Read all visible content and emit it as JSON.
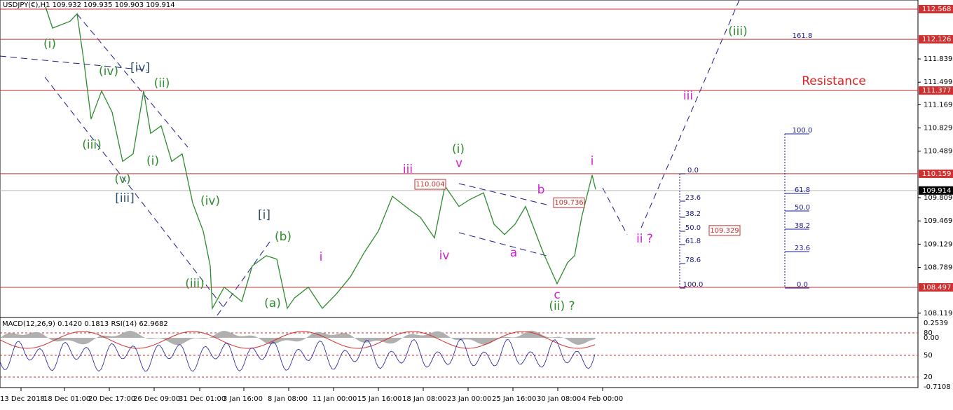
{
  "header": "USDJPY(€),H1  109.932 109.935 109.903 109.914",
  "price": {
    "color": "#2e8b2e",
    "values": [
      112.6,
      112.29,
      112.39,
      112.5,
      111.78,
      110.96,
      111.37,
      111.06,
      110.34,
      110.45,
      111.37,
      110.75,
      110.86,
      110.34,
      110.45,
      109.73,
      109.32,
      108.81,
      108.19,
      108.5,
      108.29,
      108.81,
      108.96,
      108.91,
      108.19,
      108.34,
      108.5,
      108.19,
      108.4,
      108.65,
      109.01,
      109.32,
      109.83,
      109.63,
      109.52,
      109.22,
      109.98,
      109.68,
      109.78,
      109.88,
      109.42,
      109.27,
      109.42,
      109.68,
      109.01,
      108.55,
      108.86,
      108.96,
      109.52,
      110.14,
      109.93
    ]
  },
  "price_axis": {
    "ticks": [
      111.839,
      111.499,
      111.169,
      110.829,
      110.489,
      109.809,
      109.469,
      109.129,
      108.789,
      108.119
    ]
  },
  "levels": [
    112.568,
    112.126,
    111.377,
    110.159,
    108.497
  ],
  "last_price": 109.914,
  "boxes": [
    110.004,
    109.736,
    109.329
  ],
  "waves": [
    {
      "text": "(i)",
      "color": "#2e8b2e"
    },
    {
      "text": "(iv)",
      "color": "#2e8b2e"
    },
    {
      "text": "[iv]",
      "color": "#2f4f6f"
    },
    {
      "text": "(ii)",
      "color": "#2e8b2e"
    },
    {
      "text": "(iii)",
      "color": "#2e8b2e"
    },
    {
      "text": "(i)",
      "color": "#2e8b2e"
    },
    {
      "text": "(v)",
      "color": "#2e8b2e"
    },
    {
      "text": "[iii]",
      "color": "#2f4f6f"
    },
    {
      "text": "(iv)",
      "color": "#2e8b2e"
    },
    {
      "text": "[i]",
      "color": "#2f4f6f"
    },
    {
      "text": "(b)",
      "color": "#2e8b2e"
    },
    {
      "text": "(iii)",
      "color": "#2e8b2e"
    },
    {
      "text": "(a)",
      "color": "#2e8b2e"
    },
    {
      "text": "i",
      "color": "#d020d0"
    },
    {
      "text": "iii",
      "color": "#d020d0"
    },
    {
      "text": "iv",
      "color": "#d020d0"
    },
    {
      "text": "(i)",
      "color": "#2e8b2e"
    },
    {
      "text": "v",
      "color": "#d020d0"
    },
    {
      "text": "b",
      "color": "#d020d0"
    },
    {
      "text": "a",
      "color": "#d020d0"
    },
    {
      "text": "c",
      "color": "#d020d0"
    },
    {
      "text": "(ii) ?",
      "color": "#2e8b2e"
    },
    {
      "text": "i",
      "color": "#d020d0"
    },
    {
      "text": "ii ?",
      "color": "#d020d0"
    },
    {
      "text": "iii",
      "color": "#d020d0"
    },
    {
      "text": "(iii)",
      "color": "#2e8b2e"
    },
    {
      "text": "Resistance",
      "color": "#e02020"
    }
  ],
  "fib_left": [
    "0.0",
    "23.6",
    "38.2",
    "50.0",
    "61.8",
    "78.6",
    "100.0"
  ],
  "fib_right": [
    "161.8",
    "100.0",
    "61.8",
    "50.0",
    "38.2",
    "23.6",
    "0.0"
  ],
  "indicator": {
    "label": "MACD(12,26,9) 0.1420 0.1813 RSI(14) 62.9682",
    "scale": [
      {
        "value": 0.2539,
        "label": "0.2539"
      },
      {
        "value": 0,
        "label": "0.00"
      },
      {
        "value": 80,
        "label": "80"
      },
      {
        "value": 50,
        "label": "50"
      },
      {
        "value": 20,
        "label": "20"
      },
      {
        "value": -0.7108,
        "label": "-0.7108"
      }
    ]
  },
  "time_axis": [
    "13 Dec 2018",
    "18 Dec 01:00",
    "20 Dec 17:00",
    "26 Dec 09:00",
    "31 Dec 01:00",
    "3 Jan 16:00",
    "8 Jan 08:00",
    "11 Jan 00:00",
    "15 Jan 16:00",
    "18 Jan 08:00",
    "23 Jan 00:00",
    "25 Jan 16:00",
    "30 Jan 08:00",
    "4 Feb 00:00"
  ]
}
